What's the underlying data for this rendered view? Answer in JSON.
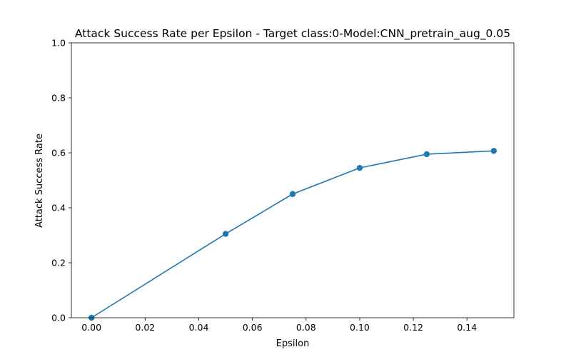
{
  "chart_data": {
    "type": "line",
    "title": "Attack Success Rate per Epsilon - Target class:0-Model:CNN_pretrain_aug_0.05",
    "xlabel": "Epsilon",
    "ylabel": "Attack Success Rate",
    "xlim": [
      -0.0075,
      0.1575
    ],
    "ylim": [
      0.0,
      1.0
    ],
    "x_ticks": [
      0.0,
      0.02,
      0.04,
      0.06,
      0.08,
      0.1,
      0.12,
      0.14
    ],
    "x_tick_labels": [
      "0.00",
      "0.02",
      "0.04",
      "0.06",
      "0.08",
      "0.10",
      "0.12",
      "0.14"
    ],
    "y_ticks": [
      0.0,
      0.2,
      0.4,
      0.6,
      0.8,
      1.0
    ],
    "y_tick_labels": [
      "0.0",
      "0.2",
      "0.4",
      "0.6",
      "0.8",
      "1.0"
    ],
    "grid": false,
    "series": [
      {
        "color": "#1f77b4",
        "marker": "circle",
        "x": [
          0.0,
          0.05,
          0.075,
          0.1,
          0.125,
          0.15
        ],
        "y": [
          0.0,
          0.305,
          0.45,
          0.545,
          0.595,
          0.607
        ]
      }
    ]
  }
}
